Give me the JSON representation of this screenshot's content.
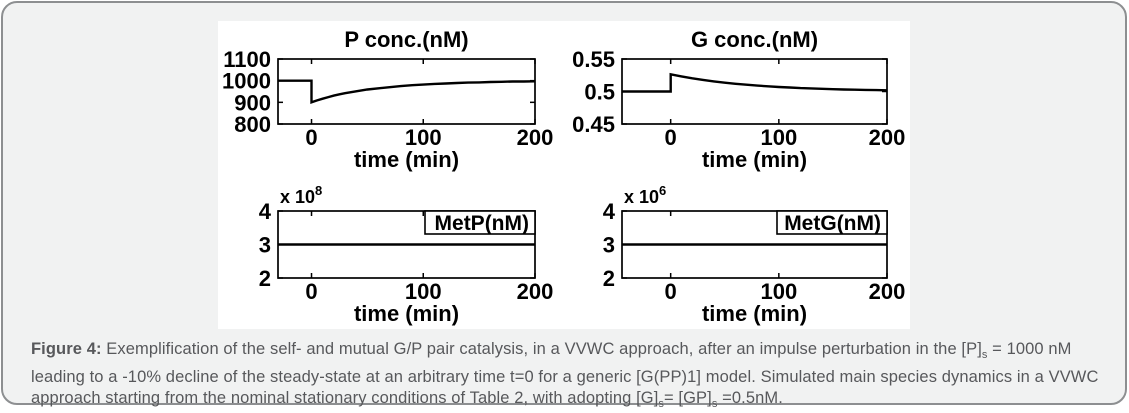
{
  "figure": {
    "caption_segments": [
      {
        "text": "Figure 4:",
        "style": "bold"
      },
      {
        "text": " Exemplification of the self- and mutual G/P pair catalysis, in a VVWC approach, after an impulse perturbation in the [P]",
        "style": "normal"
      },
      {
        "text": "s",
        "style": "sub"
      },
      {
        "text": " = 1000 nM leading to a -10% decline of the steady-state at an arbitrary time t=0 for a generic [G(PP)1] model. Simulated main species dynamics in a VVWC approach starting from the nominal stationary conditions of Table 2, with adopting [G]",
        "style": "normal"
      },
      {
        "text": "s",
        "style": "sub"
      },
      {
        "text": "= [GP]",
        "style": "normal"
      },
      {
        "text": "s",
        "style": "sub"
      },
      {
        "text": " =0.5nM.",
        "style": "normal"
      }
    ]
  },
  "colors": {
    "card_background": "#f1f2f2",
    "card_border": "#8d8f91",
    "figure_background": "#ffffff",
    "plot_line": "#000000",
    "caption_text": "#57585b"
  },
  "chart_data": [
    {
      "type": "line",
      "title": "P conc.(nM)",
      "xlabel": "time (min)",
      "xlim": [
        -30,
        200
      ],
      "ylim": [
        800,
        1100
      ],
      "xticks": [
        0,
        100,
        200
      ],
      "xtick_labels": [
        "0",
        "100",
        "200"
      ],
      "yticks": [
        800,
        900,
        1000,
        1100
      ],
      "ytick_labels": [
        "800",
        "900",
        "1000",
        "1100"
      ],
      "grid": false,
      "legend": null,
      "exponent": null,
      "points": [
        [
          -30,
          1000
        ],
        [
          0,
          1000
        ],
        [
          0,
          900
        ],
        [
          5,
          909
        ],
        [
          10,
          917
        ],
        [
          15,
          924
        ],
        [
          20,
          931
        ],
        [
          25,
          937
        ],
        [
          30,
          942
        ],
        [
          40,
          951
        ],
        [
          50,
          959
        ],
        [
          60,
          965
        ],
        [
          70,
          970
        ],
        [
          80,
          975
        ],
        [
          90,
          979
        ],
        [
          100,
          982
        ],
        [
          110,
          985
        ],
        [
          120,
          987
        ],
        [
          130,
          989
        ],
        [
          140,
          991
        ],
        [
          150,
          992
        ],
        [
          160,
          994
        ],
        [
          170,
          995
        ],
        [
          180,
          996
        ],
        [
          190,
          996
        ],
        [
          200,
          997
        ]
      ]
    },
    {
      "type": "line",
      "title": "G conc.(nM)",
      "xlabel": "time (min)",
      "xlim": [
        -45,
        200
      ],
      "ylim": [
        0.45,
        0.55
      ],
      "xticks": [
        0,
        100,
        200
      ],
      "xtick_labels": [
        "0",
        "100",
        "200"
      ],
      "yticks": [
        0.45,
        0.5,
        0.55
      ],
      "ytick_labels": [
        "0.45",
        "0.5",
        "0.55"
      ],
      "grid": false,
      "legend": null,
      "exponent": null,
      "points": [
        [
          -45,
          0.5
        ],
        [
          0,
          0.5
        ],
        [
          0,
          0.5265
        ],
        [
          10,
          0.5232
        ],
        [
          20,
          0.5203
        ],
        [
          30,
          0.5178
        ],
        [
          40,
          0.5156
        ],
        [
          50,
          0.5136
        ],
        [
          60,
          0.5119
        ],
        [
          70,
          0.5104
        ],
        [
          80,
          0.5091
        ],
        [
          90,
          0.508
        ],
        [
          100,
          0.507
        ],
        [
          110,
          0.5061
        ],
        [
          120,
          0.5053
        ],
        [
          130,
          0.5047
        ],
        [
          140,
          0.5041
        ],
        [
          150,
          0.5036
        ],
        [
          160,
          0.5031
        ],
        [
          170,
          0.5027
        ],
        [
          180,
          0.5024
        ],
        [
          190,
          0.5021
        ],
        [
          200,
          0.5018
        ]
      ]
    },
    {
      "type": "line",
      "title": "",
      "xlabel": "time (min)",
      "xlim": [
        -30,
        200
      ],
      "ylim": [
        2,
        4
      ],
      "xticks": [
        0,
        100,
        200
      ],
      "xtick_labels": [
        "0",
        "100",
        "200"
      ],
      "yticks": [
        2,
        3,
        4
      ],
      "ytick_labels": [
        "2",
        "3",
        "4"
      ],
      "grid": false,
      "legend": "MetP(nM)",
      "exponent": {
        "base": "x 10",
        "exp": "8"
      },
      "points": [
        [
          -30,
          3
        ],
        [
          200,
          3
        ]
      ]
    },
    {
      "type": "line",
      "title": "",
      "xlabel": "time (min)",
      "xlim": [
        -45,
        200
      ],
      "ylim": [
        2,
        4
      ],
      "xticks": [
        0,
        100,
        200
      ],
      "xtick_labels": [
        "0",
        "100",
        "200"
      ],
      "yticks": [
        2,
        3,
        4
      ],
      "ytick_labels": [
        "2",
        "3",
        "4"
      ],
      "grid": false,
      "legend": "MetG(nM)",
      "exponent": {
        "base": "x 10",
        "exp": "6"
      },
      "points": [
        [
          -45,
          3
        ],
        [
          200,
          3
        ]
      ]
    }
  ]
}
